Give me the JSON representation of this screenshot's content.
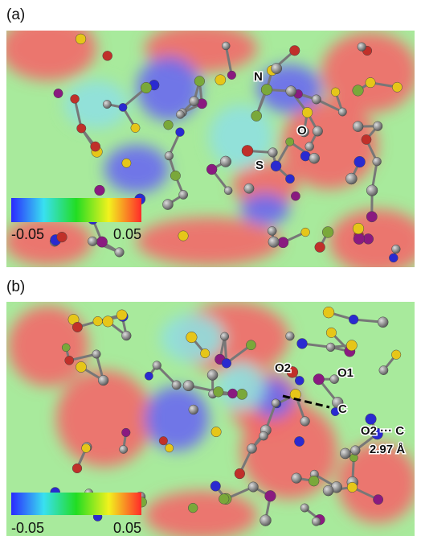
{
  "panels": [
    {
      "label": "(a)",
      "colorbar": {
        "min": "-0.05",
        "max": "0.05"
      },
      "atoms": [
        "N",
        "O",
        "S"
      ]
    },
    {
      "label": "(b)",
      "colorbar": {
        "min": "-0.05",
        "max": "0.05"
      },
      "atoms": [
        "O2",
        "O1",
        "C"
      ],
      "contact": {
        "pair": "O2 ··· C",
        "distance": "2.97 Å"
      }
    }
  ]
}
